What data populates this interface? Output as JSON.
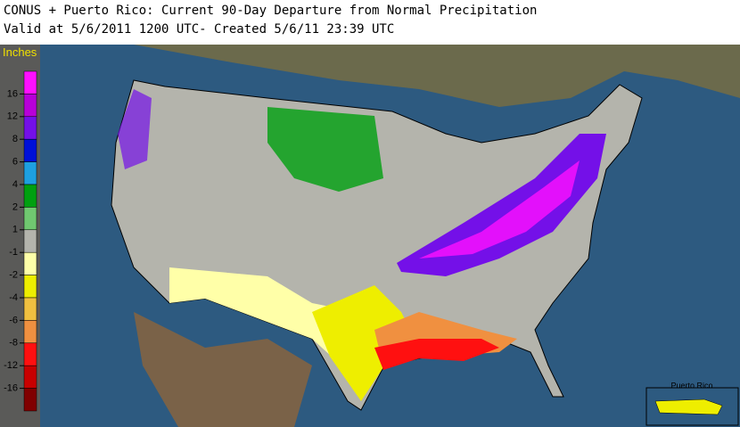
{
  "header": {
    "title": "CONUS + Puerto Rico: Current 90-Day Departure from Normal Precipitation",
    "subtitle": "Valid at 5/6/2011 1200 UTC- Created 5/6/11 23:39 UTC"
  },
  "legend": {
    "title": "Inches",
    "colors": [
      "#ff10ff",
      "#b800d8",
      "#7410e8",
      "#0010d8",
      "#1ea0e0",
      "#00a010",
      "#70c870",
      "#b4b4ac",
      "#ffffa8",
      "#eeee00",
      "#f0c040",
      "#f09040",
      "#ff1010",
      "#c80000",
      "#800000"
    ],
    "ticks": [
      16,
      12,
      8,
      6,
      4,
      2,
      1,
      -1,
      -2,
      -4,
      -6,
      -8,
      -12,
      -16
    ]
  },
  "inset": {
    "title": "Puerto Rico"
  }
}
